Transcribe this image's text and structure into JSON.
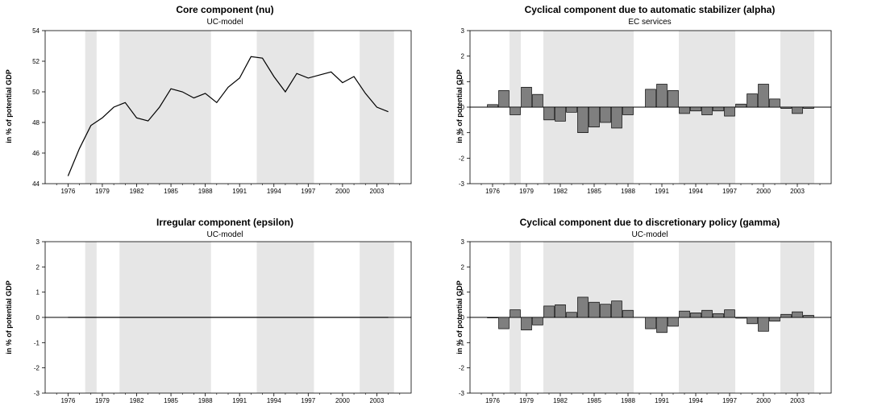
{
  "chart_data": [
    {
      "type": "line",
      "title": "Core component (nu)",
      "subtitle": "UC-model",
      "ylabel": "in % of potential GDP",
      "ylim": [
        44,
        54
      ],
      "yticks": [
        "44",
        "46",
        "48",
        "50",
        "52",
        "54"
      ],
      "xlim": [
        1974,
        2006
      ],
      "xticks": [
        "1976",
        "1979",
        "1982",
        "1985",
        "1988",
        "1991",
        "1994",
        "1997",
        "2000",
        "2003"
      ],
      "shaded_periods": [
        [
          1977.5,
          1978.5
        ],
        [
          1980.5,
          1988.5
        ],
        [
          1992.5,
          1997.5
        ],
        [
          2001.5,
          2004.5
        ]
      ],
      "x": [
        1976,
        1977,
        1978,
        1979,
        1980,
        1981,
        1982,
        1983,
        1984,
        1985,
        1986,
        1987,
        1988,
        1989,
        1990,
        1991,
        1992,
        1993,
        1994,
        1995,
        1996,
        1997,
        1998,
        1999,
        2000,
        2001,
        2002,
        2003,
        2004
      ],
      "values": [
        44.5,
        46.3,
        47.8,
        48.3,
        49.0,
        49.3,
        48.3,
        48.1,
        49.0,
        50.2,
        50.0,
        49.6,
        49.9,
        49.3,
        50.3,
        50.9,
        52.3,
        52.2,
        51.0,
        50.0,
        51.2,
        50.9,
        51.1,
        51.3,
        50.6,
        51.0,
        49.9,
        49.0,
        48.7
      ]
    },
    {
      "type": "bar",
      "title": "Cyclical component due to automatic stabilizer (alpha)",
      "subtitle": "EC services",
      "ylabel": "in % of potential GDP",
      "ylim": [
        -3,
        3
      ],
      "yticks": [
        "-3",
        "-2",
        "-1",
        "0",
        "1",
        "2",
        "3"
      ],
      "xlim": [
        1974,
        2006
      ],
      "xticks": [
        "1976",
        "1979",
        "1982",
        "1985",
        "1988",
        "1991",
        "1994",
        "1997",
        "2000",
        "2003"
      ],
      "shaded_periods": [
        [
          1977.5,
          1978.5
        ],
        [
          1980.5,
          1988.5
        ],
        [
          1992.5,
          1997.5
        ],
        [
          2001.5,
          2004.5
        ]
      ],
      "x": [
        1976,
        1977,
        1978,
        1979,
        1980,
        1981,
        1982,
        1983,
        1984,
        1985,
        1986,
        1987,
        1988,
        1990,
        1991,
        1992,
        1993,
        1994,
        1995,
        1996,
        1997,
        1998,
        1999,
        2000,
        2001,
        2002,
        2003,
        2004
      ],
      "values": [
        0.1,
        0.65,
        -0.3,
        0.78,
        0.5,
        -0.5,
        -0.55,
        -0.2,
        -1.0,
        -0.78,
        -0.6,
        -0.82,
        -0.3,
        0.7,
        0.9,
        0.65,
        -0.25,
        -0.15,
        -0.3,
        -0.15,
        -0.35,
        0.12,
        0.52,
        0.9,
        0.32,
        -0.05,
        -0.25,
        -0.05
      ]
    },
    {
      "type": "line",
      "title": "Irregular component (epsilon)",
      "subtitle": "UC-model",
      "ylabel": "in % of potential GDP",
      "ylim": [
        -3,
        3
      ],
      "yticks": [
        "-3",
        "-2",
        "-1",
        "0",
        "1",
        "2",
        "3"
      ],
      "xlim": [
        1974,
        2006
      ],
      "xticks": [
        "1976",
        "1979",
        "1982",
        "1985",
        "1988",
        "1991",
        "1994",
        "1997",
        "2000",
        "2003"
      ],
      "shaded_periods": [
        [
          1977.5,
          1978.5
        ],
        [
          1980.5,
          1988.5
        ],
        [
          1992.5,
          1997.5
        ],
        [
          2001.5,
          2004.5
        ]
      ],
      "x": [
        1976,
        2004
      ],
      "values": [
        0,
        0
      ]
    },
    {
      "type": "bar",
      "title": "Cyclical component due to discretionary policy (gamma)",
      "subtitle": "UC-model",
      "ylabel": "in % of potential GDP",
      "ylim": [
        -3,
        3
      ],
      "yticks": [
        "-3",
        "-2",
        "-1",
        "0",
        "1",
        "2",
        "3"
      ],
      "xlim": [
        1974,
        2006
      ],
      "xticks": [
        "1976",
        "1979",
        "1982",
        "1985",
        "1988",
        "1991",
        "1994",
        "1997",
        "2000",
        "2003"
      ],
      "shaded_periods": [
        [
          1977.5,
          1978.5
        ],
        [
          1980.5,
          1988.5
        ],
        [
          1992.5,
          1997.5
        ],
        [
          2001.5,
          2004.5
        ]
      ],
      "x": [
        1976,
        1977,
        1978,
        1979,
        1980,
        1981,
        1982,
        1983,
        1984,
        1985,
        1986,
        1987,
        1988,
        1990,
        1991,
        1992,
        1993,
        1994,
        1995,
        1996,
        1997,
        1998,
        1999,
        2000,
        2001,
        2002,
        2003,
        2004
      ],
      "values": [
        -0.02,
        -0.45,
        0.3,
        -0.5,
        -0.3,
        0.45,
        0.5,
        0.2,
        0.8,
        0.6,
        0.52,
        0.65,
        0.28,
        -0.45,
        -0.6,
        -0.35,
        0.25,
        0.18,
        0.28,
        0.15,
        0.3,
        -0.03,
        -0.25,
        -0.55,
        -0.15,
        0.12,
        0.22,
        0.08
      ]
    }
  ],
  "colors": {
    "shade": "#e6e6e6",
    "bar_fill": "#7f7f7f",
    "line": "#000000"
  }
}
